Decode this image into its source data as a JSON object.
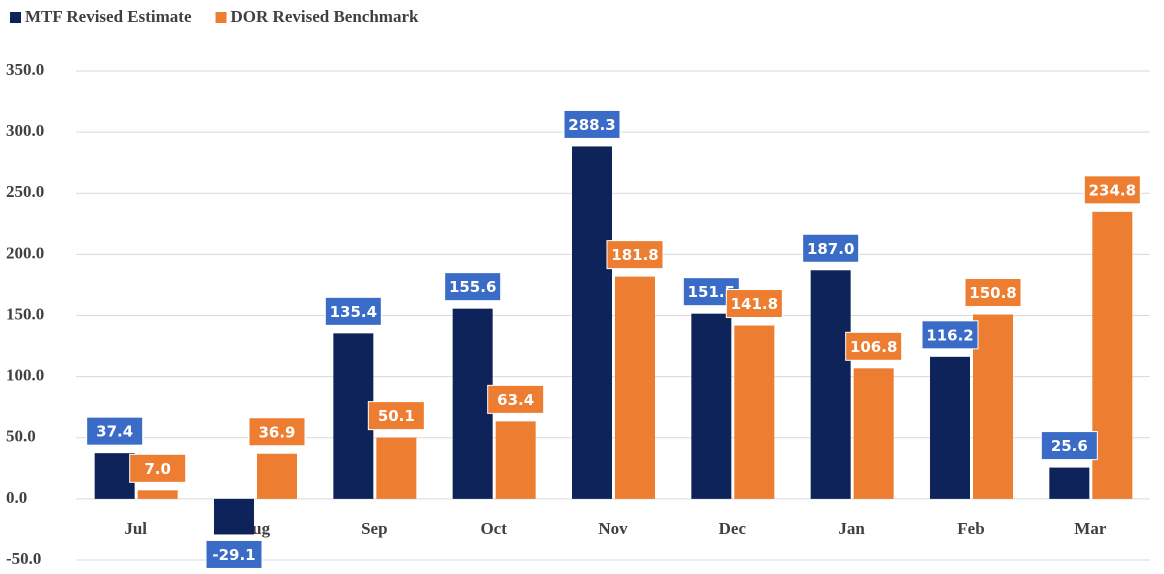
{
  "chart_data": {
    "type": "bar",
    "categories": [
      "Jul",
      "Aug",
      "Sep",
      "Oct",
      "Nov",
      "Dec",
      "Jan",
      "Feb",
      "Mar"
    ],
    "series": [
      {
        "name": "MTF Revised Estimate",
        "color": "#0d2359",
        "label_color": "#3a6bc6",
        "values": [
          37.4,
          -29.1,
          135.4,
          155.6,
          288.3,
          151.5,
          187.0,
          116.2,
          25.6
        ],
        "value_labels": [
          "37.4",
          "-29.1",
          "135.4",
          "155.6",
          "288.3",
          "151.5",
          "187.0",
          "116.2",
          "25.6"
        ]
      },
      {
        "name": "DOR Revised Benchmark",
        "color": "#ed7d31",
        "label_color": "#ed7d31",
        "values": [
          7.0,
          36.9,
          50.1,
          63.4,
          181.8,
          141.8,
          106.8,
          150.8,
          234.8
        ],
        "value_labels": [
          "7.0",
          "36.9",
          "50.1",
          "63.4",
          "181.8",
          "141.8",
          "106.8",
          "150.8",
          "234.8"
        ]
      }
    ],
    "ylim": [
      -50,
      350
    ],
    "yticks": [
      {
        "value": -50,
        "label": "-50.0"
      },
      {
        "value": 0,
        "label": "0.0"
      },
      {
        "value": 50,
        "label": "50.0"
      },
      {
        "value": 100,
        "label": "100.0"
      },
      {
        "value": 150,
        "label": "150.0"
      },
      {
        "value": 200,
        "label": "200.0"
      },
      {
        "value": 250,
        "label": "250.0"
      },
      {
        "value": 300,
        "label": "300.0"
      },
      {
        "value": 350,
        "label": "350.0"
      }
    ],
    "grid": true
  }
}
